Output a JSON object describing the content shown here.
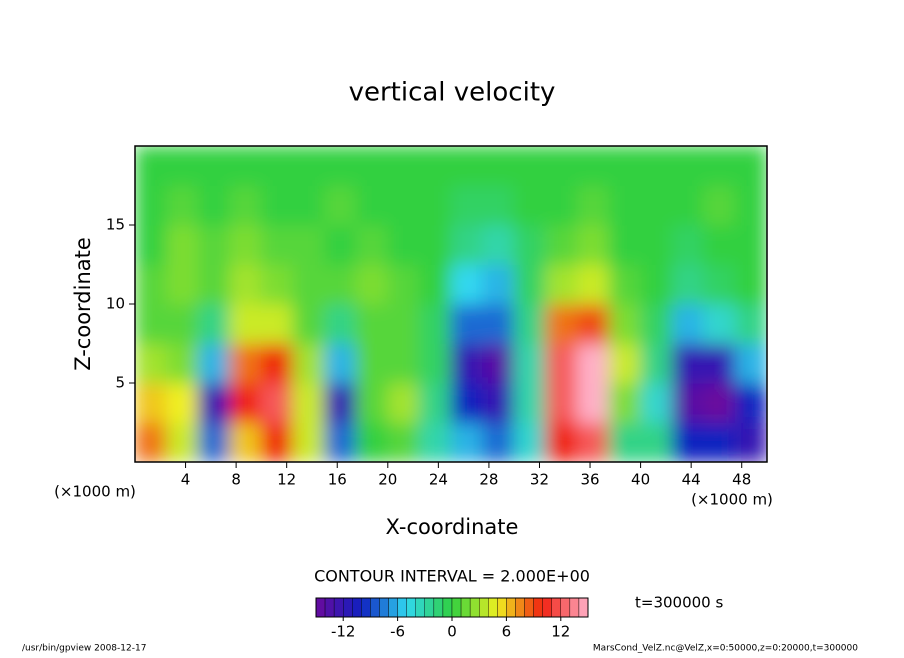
{
  "chart_data": {
    "type": "contour",
    "title": "vertical velocity",
    "xlabel": "X-coordinate",
    "ylabel": "Z-coordinate",
    "xunit": "(×1000 m)",
    "yunit": "(×1000 m)",
    "xlim": [
      0,
      50
    ],
    "ylim": [
      0,
      20
    ],
    "xticks": [
      4,
      8,
      12,
      16,
      20,
      24,
      28,
      32,
      36,
      40,
      44,
      48
    ],
    "yticks": [
      5,
      10,
      15
    ],
    "x": [
      1.25,
      3.75,
      6.25,
      8.75,
      11.25,
      13.75,
      16.25,
      18.75,
      21.25,
      23.75,
      26.25,
      28.75,
      31.25,
      33.75,
      36.25,
      38.75,
      41.25,
      43.75,
      46.25,
      48.75
    ],
    "y": [
      1.25,
      3.75,
      6.25,
      8.75,
      11.25,
      13.75,
      16.25,
      18.75
    ],
    "z": [
      [
        8,
        4,
        -8,
        6,
        10,
        4,
        -8,
        0,
        1,
        -3,
        -6,
        -8,
        -4,
        10,
        12,
        -2,
        -2,
        -10,
        -10,
        -12
      ],
      [
        6,
        5,
        -12,
        10,
        12,
        4,
        -12,
        1,
        3,
        -2,
        -10,
        -12,
        -3,
        12,
        15,
        2,
        -4,
        -14,
        -15,
        -10
      ],
      [
        3,
        2,
        -6,
        8,
        10,
        3,
        -6,
        1,
        1,
        -1,
        -12,
        -14,
        -3,
        12,
        15,
        4,
        -2,
        -12,
        -12,
        -6
      ],
      [
        1,
        1,
        -2,
        4,
        4,
        1,
        -2,
        1,
        1,
        -1,
        -8,
        -8,
        -2,
        8,
        9,
        2,
        -1,
        -6,
        -4,
        -2
      ],
      [
        1,
        2,
        1,
        3,
        2,
        1,
        1,
        2,
        1,
        0,
        -5,
        -6,
        -1,
        3,
        4,
        1,
        0,
        -2,
        -1,
        0
      ],
      [
        0,
        2,
        1,
        2,
        1,
        1,
        0,
        1,
        0,
        0,
        -2,
        -3,
        -1,
        1,
        2,
        0,
        0,
        -1,
        0,
        0
      ],
      [
        0,
        1,
        0,
        1,
        0,
        0,
        1,
        0,
        0,
        0,
        -1,
        -1,
        0,
        0,
        1,
        0,
        0,
        0,
        1,
        0
      ],
      [
        0,
        0,
        0,
        0,
        0,
        0,
        0,
        0,
        0,
        0,
        0,
        0,
        0,
        0,
        0,
        0,
        0,
        0,
        0,
        0
      ]
    ],
    "clim": [
      -15,
      15
    ],
    "colormap": [
      "#6a0a9e",
      "#1020c0",
      "#30d8f0",
      "#30d040",
      "#f0f020",
      "#f02010",
      "#ffb0c8"
    ],
    "cbar_ticks": [
      -12,
      -6,
      0,
      6,
      12
    ],
    "contour_interval": "CONTOUR INTERVAL = 2.000E+00",
    "time": "t=300000 s",
    "footer_left": "/usr/bin/gpview  2008-12-17",
    "footer_right": "MarsCond_VelZ.nc@VelZ,x=0:50000,z=0:20000,t=300000"
  }
}
